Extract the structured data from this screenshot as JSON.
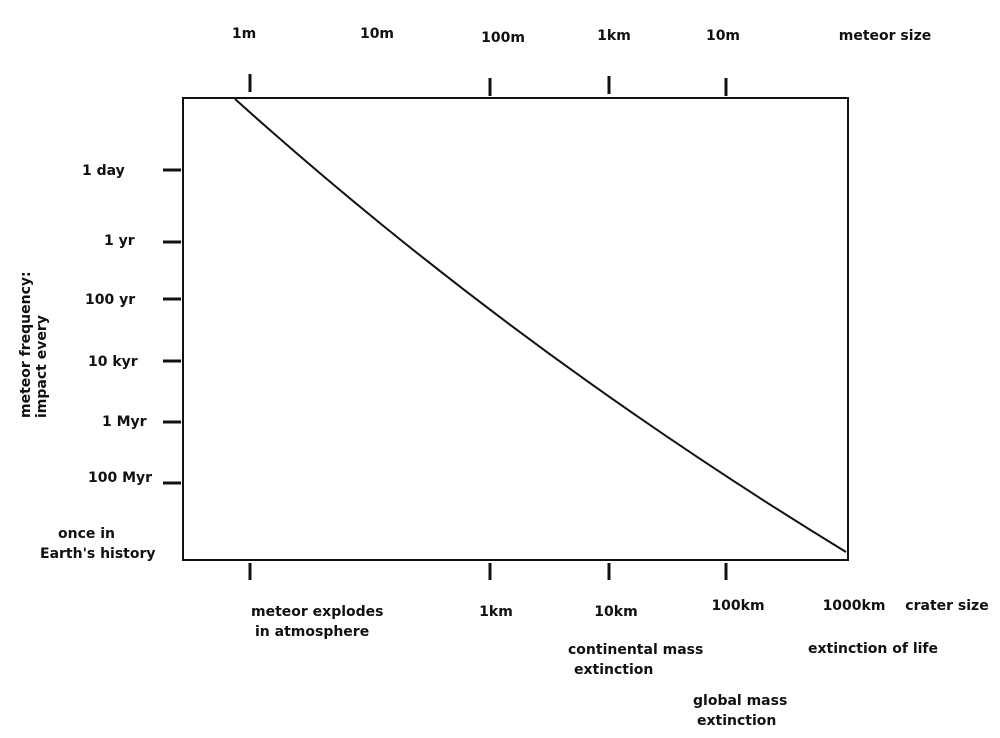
{
  "chart_data": {
    "type": "line",
    "top_axis_title": "meteor size",
    "top_ticks": [
      "1m",
      "10m",
      "100m",
      "1km",
      "10m"
    ],
    "left_axis_title": [
      "meteor frequency:",
      "impact every"
    ],
    "left_ticks": [
      "1 day",
      "1 yr",
      "100 yr",
      "10 kyr",
      "1 Myr",
      "100 Myr"
    ],
    "left_bottom_label": [
      "once in",
      "Earth's history"
    ],
    "bottom_axis_title": "crater size",
    "bottom_ticks": [
      "1km",
      "10km",
      "100km",
      "1000km"
    ],
    "annotations": [
      [
        "meteor explodes",
        "in atmosphere"
      ],
      [
        "continental mass",
        "extinction"
      ],
      [
        "extinction of life"
      ],
      [
        "global mass",
        "extinction"
      ]
    ],
    "series": [
      {
        "x": [
          1,
          1000
        ],
        "y": [
          1,
          0
        ]
      }
    ],
    "grid": false,
    "legend": "none"
  }
}
